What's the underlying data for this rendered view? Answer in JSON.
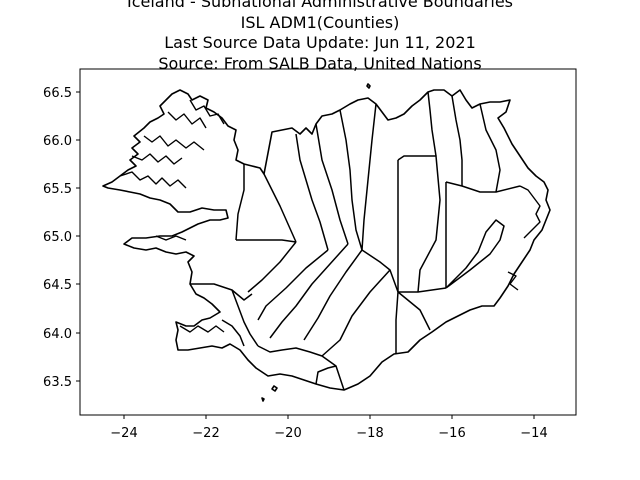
{
  "title_lines": [
    "Iceland - Subnational Administrative Boundaries",
    "ISL ADM1(Counties)",
    "Last Source Data Update: Jun 11, 2021",
    "Source: From SALB Data, United Nations"
  ],
  "chart_data": {
    "type": "map",
    "xlim": [
      -25.1,
      -13.0
    ],
    "ylim": [
      63.15,
      66.75
    ],
    "xticks": [
      -24,
      -22,
      -20,
      -18,
      -16,
      -14
    ],
    "yticks": [
      63.5,
      64.0,
      64.5,
      65.0,
      65.5,
      66.0,
      66.5
    ],
    "xtick_labels": [
      "−24",
      "−22",
      "−20",
      "−18",
      "−16",
      "−14"
    ],
    "ytick_labels": [
      "63.5",
      "64.0",
      "64.5",
      "65.0",
      "65.5",
      "66.0",
      "66.5"
    ],
    "grid": false,
    "line_color": "#000000"
  }
}
